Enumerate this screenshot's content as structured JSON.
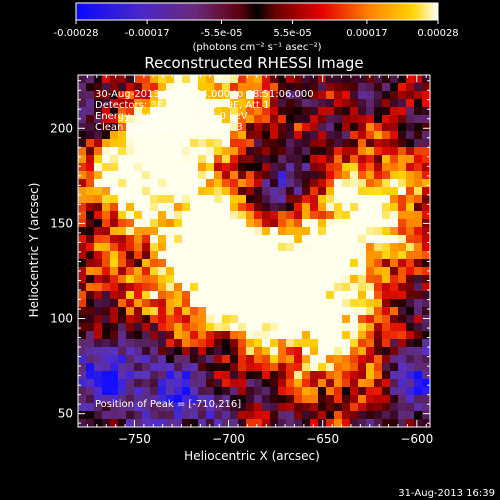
{
  "colorbar": {
    "ticks": [
      "-0.00028",
      "-0.00017",
      "-5.5e-05",
      "5.5e-05",
      "0.00017",
      "0.00028"
    ],
    "tick_values": [
      -0.00028,
      -0.00017,
      -5.5e-05,
      5.5e-05,
      0.00017,
      0.00028
    ],
    "range": [
      -0.00028,
      0.00028
    ],
    "unit_label": "(photons cm⁻² s⁻¹ asec⁻²)"
  },
  "chart_data": {
    "type": "heatmap",
    "title": "Reconstructed RHESSI Image",
    "xlabel": "Heliocentric X (arcsec)",
    "ylabel": "Heliocentric Y (arcsec)",
    "xlim": [
      -780,
      -593
    ],
    "ylim": [
      43,
      228
    ],
    "xticks": [
      -750,
      -700,
      -650,
      -600
    ],
    "yticks": [
      50,
      100,
      150,
      200
    ],
    "xtick_labels": [
      "−750",
      "−700",
      "−650",
      "−600"
    ],
    "ytick_labels": [
      "50",
      "100",
      "150",
      "200"
    ],
    "colormap": [
      "#1a10ff",
      "#6a3aa0",
      "#8a1828",
      "#e00000",
      "#ff8a00",
      "#ffd000",
      "#ffffff"
    ],
    "peak_position": [
      -710,
      216
    ],
    "peak_label": "Position of Peak = [-710,216]",
    "header_lines": [
      "30-Aug-2013 08:45:44.000 to 08:51:06.000",
      "Detectors: 3F 5F 6F 7F 8F 9F, Att 1",
      "Energy Range: 12.0 - 25.0 keV",
      "Clean     Total counts: 9.95E+03"
    ],
    "hotspots": [
      {
        "x": -740,
        "y": 195,
        "value": 0.0002
      },
      {
        "x": -752,
        "y": 175,
        "value": 0.00024
      },
      {
        "x": -700,
        "y": 150,
        "value": 0.00025
      },
      {
        "x": -712,
        "y": 128,
        "value": 0.00022
      },
      {
        "x": -690,
        "y": 110,
        "value": 0.0002
      },
      {
        "x": -650,
        "y": 138,
        "value": 0.00023
      },
      {
        "x": -660,
        "y": 108,
        "value": 0.00021
      },
      {
        "x": -620,
        "y": 160,
        "value": 0.00026
      },
      {
        "x": -710,
        "y": 216,
        "value": 0.00028
      },
      {
        "x": -635,
        "y": 80,
        "value": 0.00018
      },
      {
        "x": -760,
        "y": 110,
        "value": 0.00012
      }
    ],
    "coldspots": [
      {
        "x": -675,
        "y": 165,
        "value": -0.00028
      },
      {
        "x": -765,
        "y": 75,
        "value": -0.00022
      },
      {
        "x": -725,
        "y": 60,
        "value": -0.00018
      },
      {
        "x": -600,
        "y": 70,
        "value": -0.0002
      },
      {
        "x": -770,
        "y": 210,
        "value": -0.00015
      }
    ]
  },
  "footer": {
    "timestamp": "31-Aug-2013 16:39"
  }
}
